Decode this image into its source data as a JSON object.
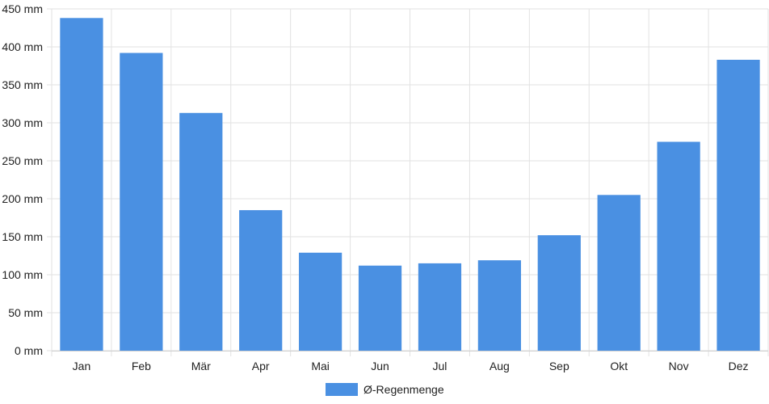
{
  "chart_data": {
    "type": "bar",
    "title": "",
    "xlabel": "",
    "ylabel": "",
    "categories": [
      "Jan",
      "Feb",
      "Mär",
      "Apr",
      "Mai",
      "Jun",
      "Jul",
      "Aug",
      "Sep",
      "Okt",
      "Nov",
      "Dez"
    ],
    "series": [
      {
        "name": "Ø-Regenmenge",
        "color": "#4a90e2",
        "values": [
          438,
          392,
          313,
          185,
          129,
          112,
          115,
          119,
          152,
          205,
          275,
          383
        ]
      }
    ],
    "ylim": [
      0,
      450
    ],
    "yticks": [
      0,
      50,
      100,
      150,
      200,
      250,
      300,
      350,
      400,
      450
    ],
    "ytick_labels": [
      "0 mm",
      "50 mm",
      "100 mm",
      "150 mm",
      "200 mm",
      "250 mm",
      "300 mm",
      "350 mm",
      "400 mm",
      "450 mm"
    ],
    "grid": true,
    "legend_position": "bottom-center"
  }
}
